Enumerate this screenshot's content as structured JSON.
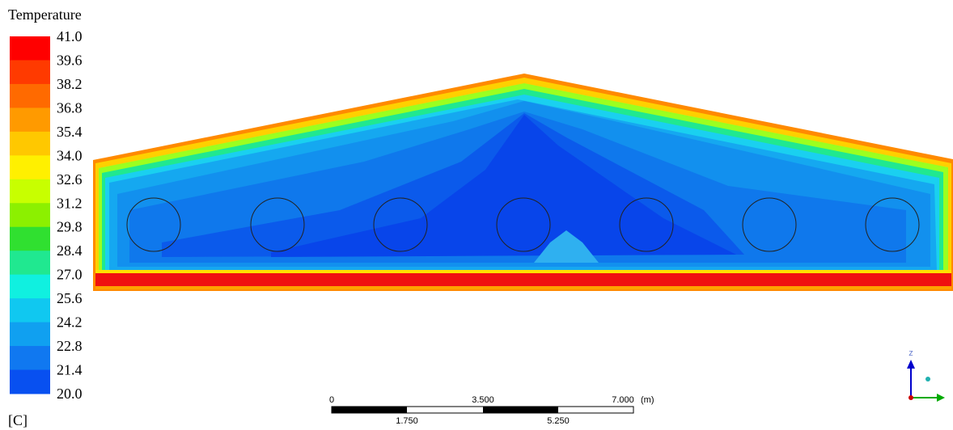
{
  "legend": {
    "title": "Temperature",
    "ticks": [
      "41.0",
      "39.6",
      "38.2",
      "36.8",
      "35.4",
      "34.0",
      "32.6",
      "31.2",
      "29.8",
      "28.4",
      "27.0",
      "25.6",
      "24.2",
      "22.8",
      "21.4",
      "20.0"
    ],
    "unit": "[C]"
  },
  "scale_bar": {
    "top_labels": [
      "0",
      "3.500",
      "7.000"
    ],
    "unit": "(m)",
    "bottom_labels": [
      "1.750",
      "5.250"
    ]
  },
  "triad": {
    "axis": "z"
  }
}
